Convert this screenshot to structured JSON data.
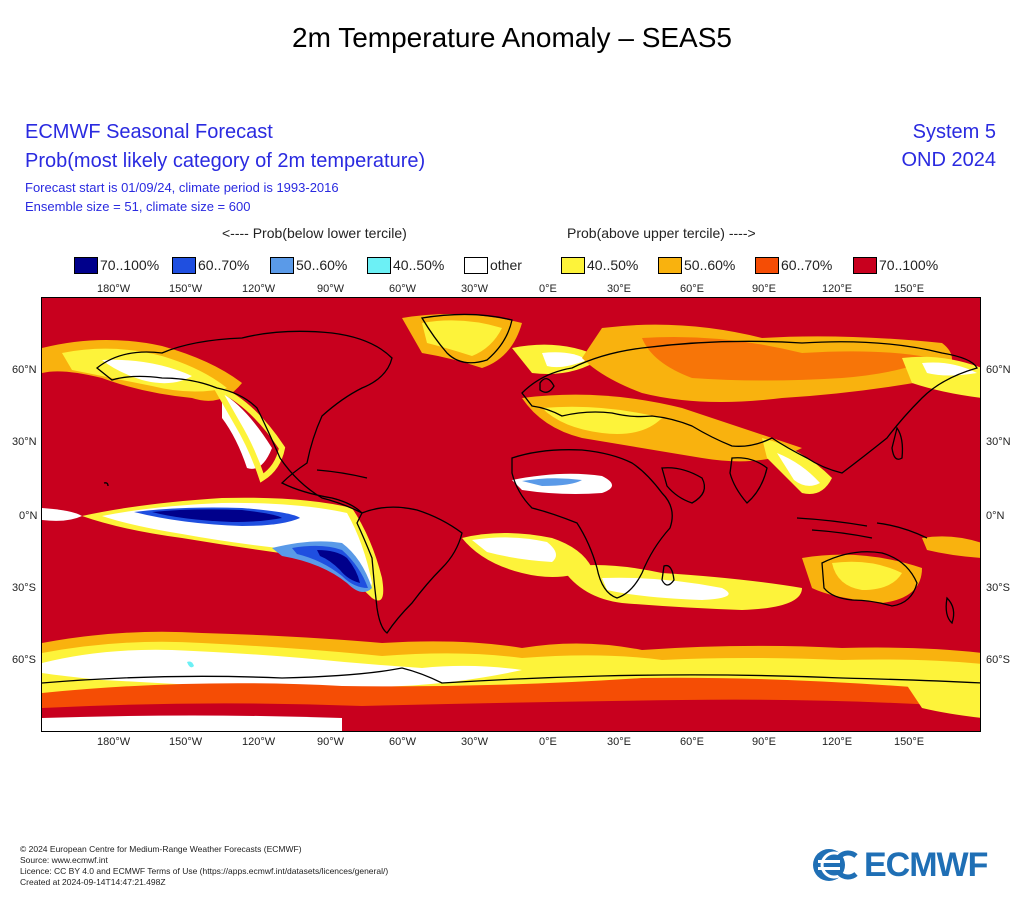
{
  "page_title": "2m Temperature Anomaly – SEAS5",
  "header": {
    "title": "ECMWF Seasonal Forecast",
    "subtitle": "Prob(most likely category of 2m temperature)",
    "forecast_start": "Forecast start is 01/09/24, climate period is 1993-2016",
    "ensemble": "Ensemble size = 51, climate size = 600",
    "system": "System 5",
    "period": "OND 2024"
  },
  "legend": {
    "below_label": "<---- Prob(below lower tercile)",
    "above_label": "Prob(above upper tercile) ---->",
    "items": [
      {
        "label": "70..100%",
        "color": "#00008b"
      },
      {
        "label": "60..70%",
        "color": "#1f4fe0"
      },
      {
        "label": "50..60%",
        "color": "#5a9ae8"
      },
      {
        "label": "40..50%",
        "color": "#6cf0f5"
      },
      {
        "label": "other",
        "color": "#ffffff"
      },
      {
        "label": "40..50%",
        "color": "#fdf33a"
      },
      {
        "label": "50..60%",
        "color": "#f9b20e"
      },
      {
        "label": "60..70%",
        "color": "#f54d05"
      },
      {
        "label": "70..100%",
        "color": "#c8001e"
      }
    ]
  },
  "axes": {
    "lon_ticks": [
      "180°W",
      "150°W",
      "120°W",
      "90°W",
      "60°W",
      "30°W",
      "0°E",
      "30°E",
      "60°E",
      "90°E",
      "120°E",
      "150°E"
    ],
    "lat_ticks": [
      "60°N",
      "30°N",
      "0°N",
      "30°S",
      "60°S"
    ]
  },
  "colors": {
    "background": "#c8001e",
    "coast": "#000000"
  },
  "footer": {
    "line1": "© 2024 European Centre for Medium-Range Weather Forecasts (ECMWF)",
    "line2": "Source: www.ecmwf.int",
    "line3": "Licence: CC BY 4.0 and ECMWF Terms of Use (https://apps.ecmwf.int/datasets/licences/general/)",
    "line4": "Created at 2024-09-14T14:47:21.498Z"
  },
  "logo": {
    "text": "ECMWF",
    "icon": "ecmwf-logo-icon"
  }
}
